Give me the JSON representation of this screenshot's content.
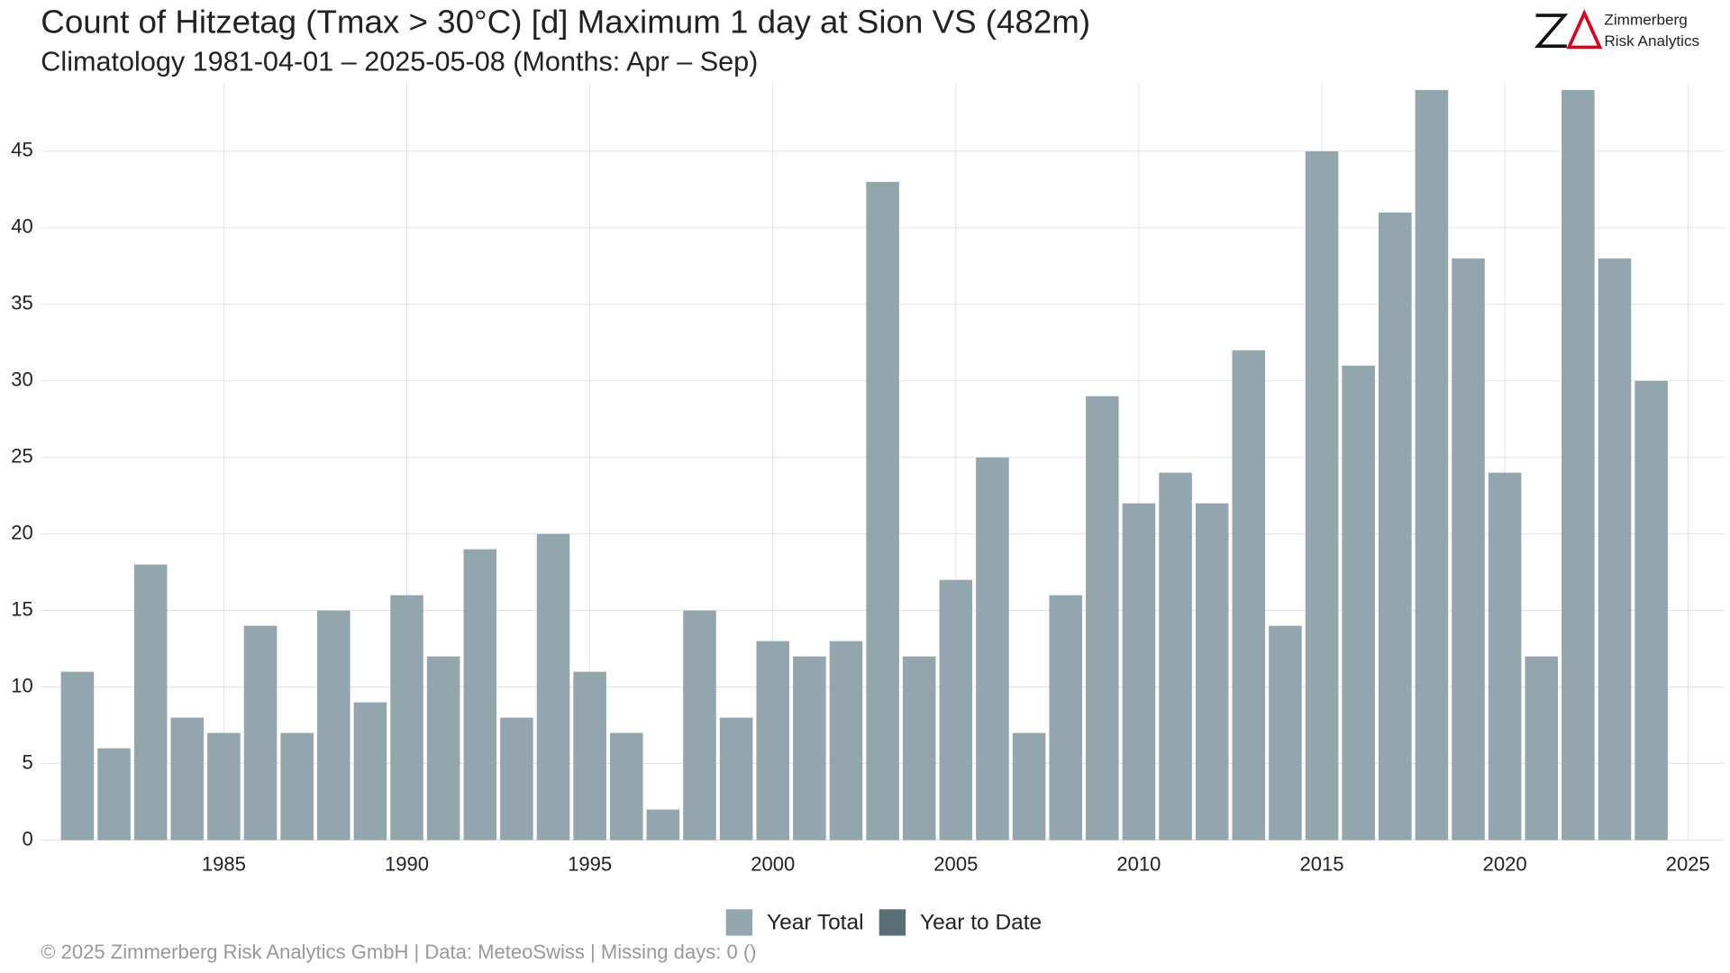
{
  "chart_data": {
    "type": "bar",
    "title": "Count of Hitzetag (Tmax > 30°C) [d] Maximum 1 day at Sion  VS (482m)",
    "subtitle": "Climatology 1981-04-01 – 2025-05-08 (Months: Apr – Sep)",
    "logo": [
      "Zimmerberg",
      "Risk Analytics"
    ],
    "footer": "©  2025 Zimmerberg Risk Analytics GmbH | Data: MeteoSwiss | Missing days: 0 ()",
    "x": [
      1981,
      1982,
      1983,
      1984,
      1985,
      1986,
      1987,
      1988,
      1989,
      1990,
      1991,
      1992,
      1993,
      1994,
      1995,
      1996,
      1997,
      1998,
      1999,
      2000,
      2001,
      2002,
      2003,
      2004,
      2005,
      2006,
      2007,
      2008,
      2009,
      2010,
      2011,
      2012,
      2013,
      2014,
      2015,
      2016,
      2017,
      2018,
      2019,
      2020,
      2021,
      2022,
      2023,
      2024,
      2025
    ],
    "series": [
      {
        "name": "Year Total",
        "color": "#94a6ad",
        "values": [
          11,
          6,
          18,
          8,
          7,
          14,
          7,
          15,
          9,
          16,
          12,
          19,
          8,
          20,
          11,
          7,
          2,
          15,
          8,
          13,
          12,
          13,
          43,
          12,
          17,
          25,
          7,
          16,
          29,
          22,
          24,
          22,
          32,
          14,
          45,
          31,
          41,
          49,
          38,
          24,
          12,
          49,
          38,
          30,
          null
        ]
      },
      {
        "name": "Year to Date",
        "color": "#5a6e75",
        "values": [
          null,
          null,
          null,
          null,
          null,
          null,
          null,
          null,
          null,
          null,
          null,
          null,
          null,
          null,
          null,
          null,
          null,
          null,
          null,
          null,
          null,
          null,
          null,
          null,
          null,
          null,
          null,
          null,
          null,
          null,
          null,
          null,
          null,
          null,
          null,
          null,
          null,
          null,
          null,
          null,
          null,
          null,
          null,
          null,
          0
        ]
      }
    ],
    "xlim": [
      1980,
      2026
    ],
    "xticks": [
      1985,
      1990,
      1995,
      2000,
      2005,
      2010,
      2015,
      2020,
      2025
    ],
    "ylim": [
      0,
      49.5
    ],
    "yticks": [
      0,
      5,
      10,
      15,
      20,
      25,
      30,
      35,
      40,
      45
    ],
    "grid": true,
    "legend": "bottom"
  }
}
